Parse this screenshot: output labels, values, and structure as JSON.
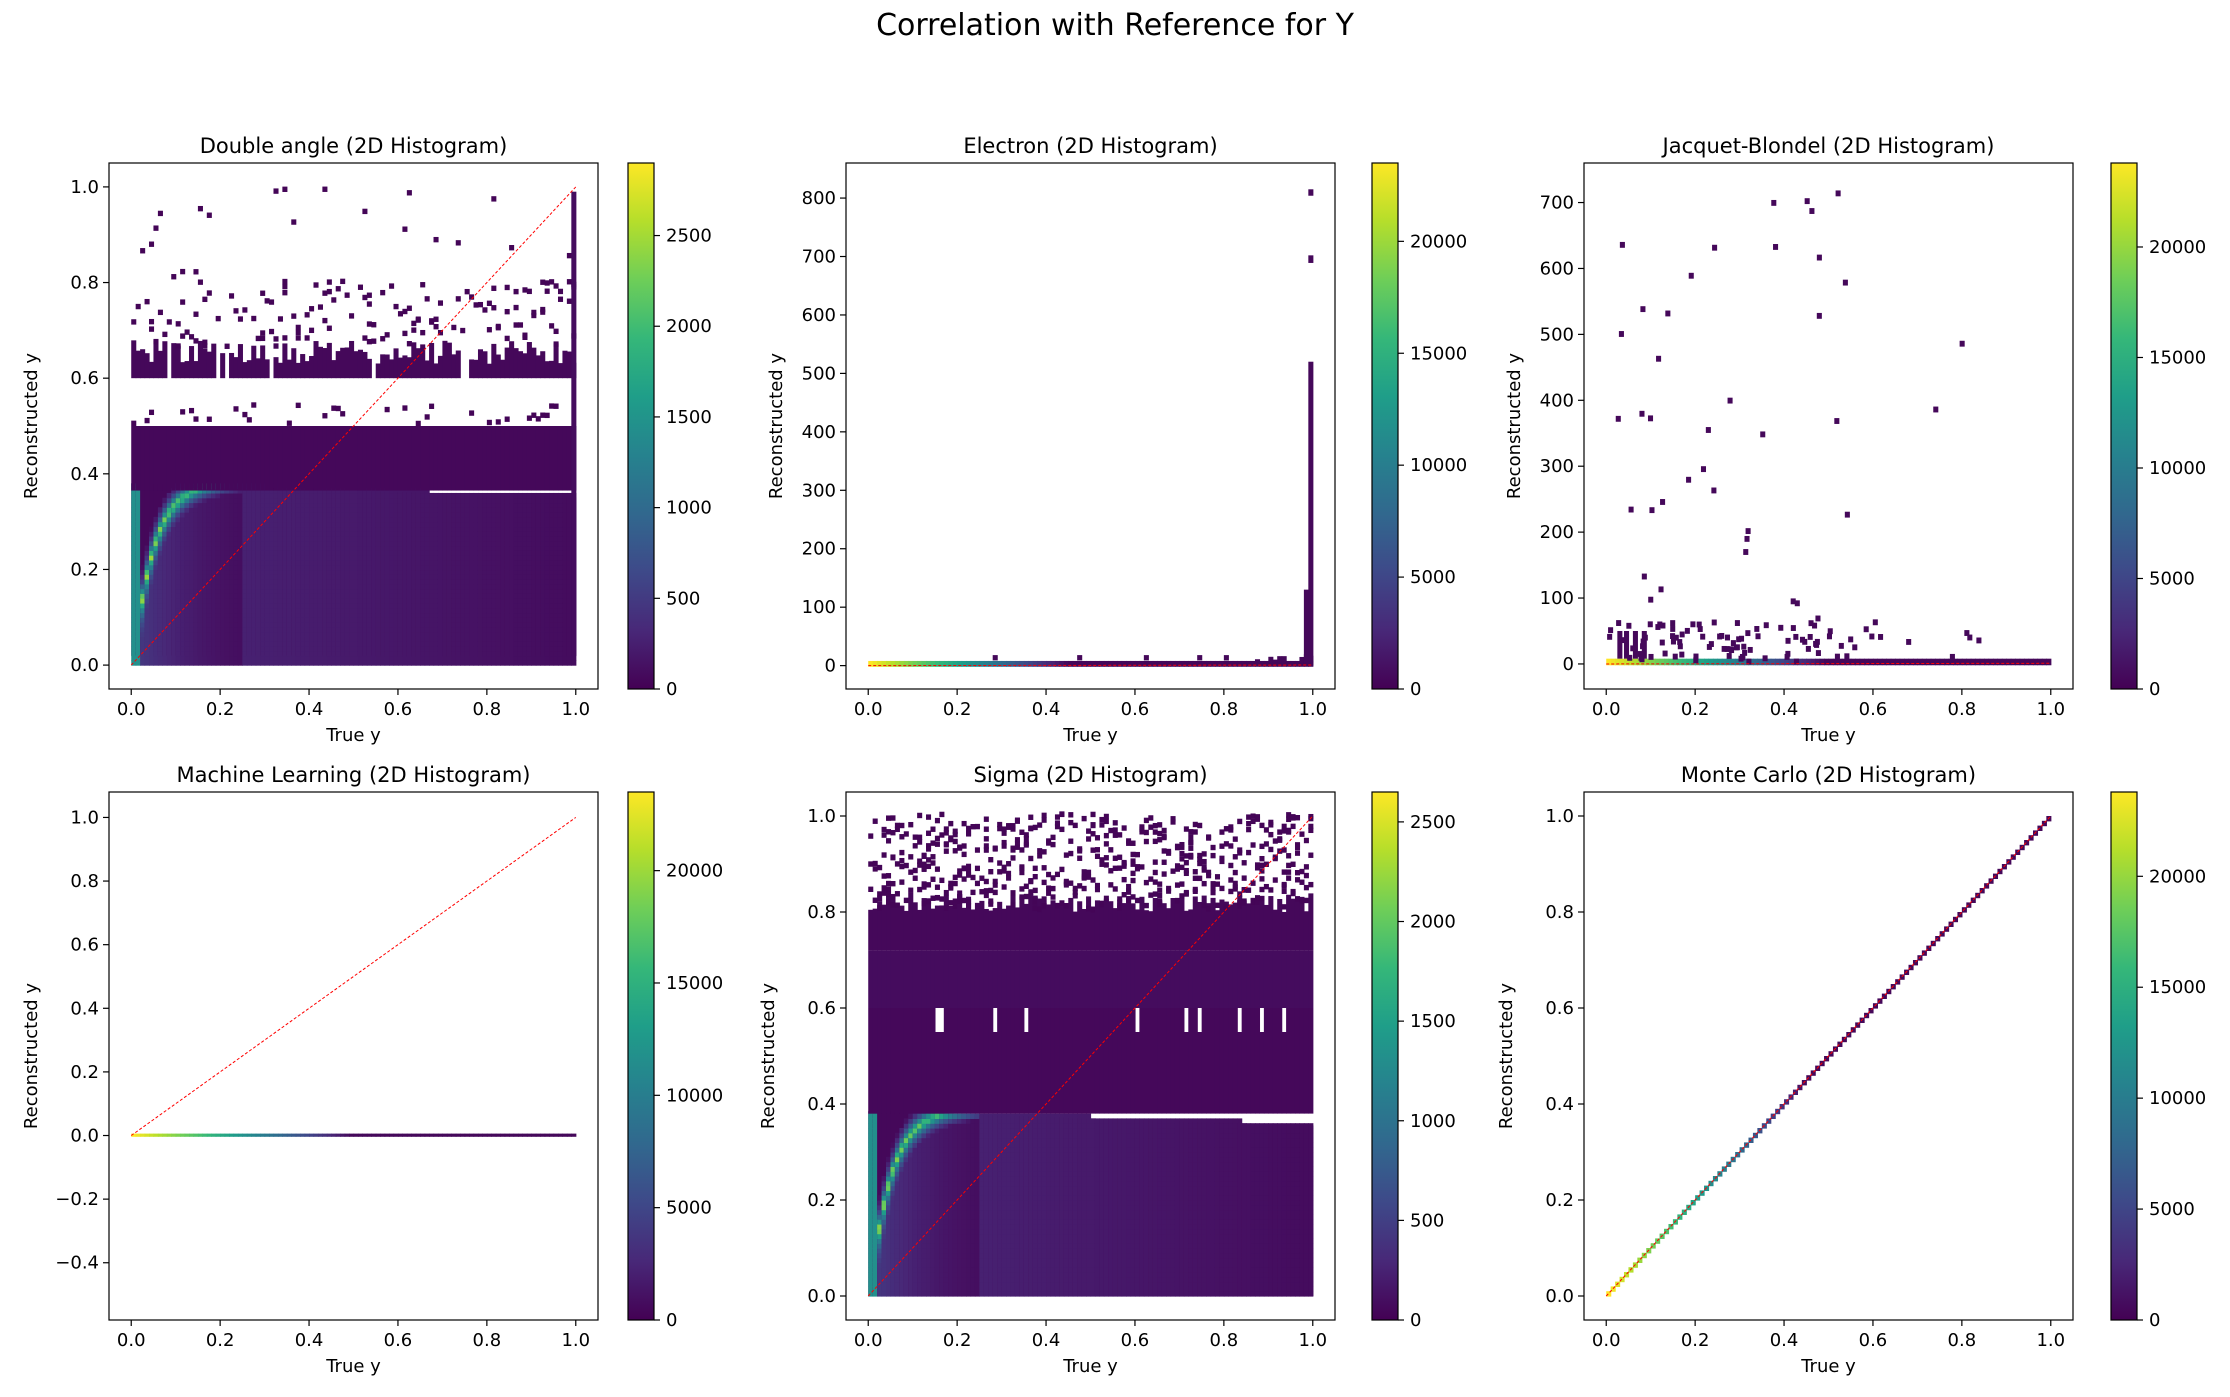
{
  "figure_title": "Correlation with Reference for Y",
  "colors": {
    "viridis": [
      "#440154",
      "#482878",
      "#3e4989",
      "#31688e",
      "#26828e",
      "#1f9e89",
      "#35b779",
      "#6ece58",
      "#b5de2b",
      "#fde725"
    ],
    "reference_line": "#ff0000",
    "axes": "#000000"
  },
  "chart_data": [
    {
      "type": "heatmap",
      "name": "double_angle",
      "title": "Double angle (2D Histogram)",
      "xlabel": "True y",
      "ylabel": "Reconstructed y",
      "xlim": [
        -0.05,
        1.05
      ],
      "ylim": [
        -0.05,
        1.05
      ],
      "xticks": [
        "0.0",
        "0.2",
        "0.4",
        "0.6",
        "0.8",
        "1.0"
      ],
      "yticks": [
        "0.0",
        "0.2",
        "0.4",
        "0.6",
        "0.8",
        "1.0"
      ],
      "colorbar": {
        "range": [
          0,
          2900
        ],
        "ticks": [
          "0",
          "500",
          "1000",
          "1500",
          "2000",
          "2500"
        ]
      },
      "reference_line": {
        "x": [
          0,
          1
        ],
        "y": [
          0,
          1
        ]
      },
      "pattern": "da"
    },
    {
      "type": "heatmap",
      "name": "electron",
      "title": "Electron (2D Histogram)",
      "xlabel": "True y",
      "ylabel": "Reconstructed y",
      "xlim": [
        -0.05,
        1.05
      ],
      "ylim": [
        -40,
        860
      ],
      "xticks": [
        "0.0",
        "0.2",
        "0.4",
        "0.6",
        "0.8",
        "1.0"
      ],
      "yticks": [
        "0",
        "100",
        "200",
        "300",
        "400",
        "500",
        "600",
        "700",
        "800"
      ],
      "colorbar": {
        "range": [
          0,
          23500
        ],
        "ticks": [
          "0",
          "5000",
          "10000",
          "15000",
          "20000"
        ]
      },
      "reference_line": {
        "x": [
          0,
          1
        ],
        "y": [
          0,
          1
        ]
      },
      "pattern": "electron"
    },
    {
      "type": "heatmap",
      "name": "jacquet_blondel",
      "title": "Jacquet-Blondel (2D Histogram)",
      "xlabel": "True y",
      "ylabel": "Reconstructed y",
      "xlim": [
        -0.05,
        1.05
      ],
      "ylim": [
        -38,
        760
      ],
      "xticks": [
        "0.0",
        "0.2",
        "0.4",
        "0.6",
        "0.8",
        "1.0"
      ],
      "yticks": [
        "0",
        "100",
        "200",
        "300",
        "400",
        "500",
        "600",
        "700"
      ],
      "colorbar": {
        "range": [
          0,
          23800
        ],
        "ticks": [
          "0",
          "5000",
          "10000",
          "15000",
          "20000"
        ]
      },
      "reference_line": {
        "x": [
          0,
          1
        ],
        "y": [
          0,
          1
        ]
      },
      "pattern": "jb"
    },
    {
      "type": "heatmap",
      "name": "machine_learning",
      "title": "Machine Learning (2D Histogram)",
      "xlabel": "True y",
      "ylabel": "Reconstructed y",
      "xlim": [
        -0.05,
        1.05
      ],
      "ylim": [
        -0.58,
        1.08
      ],
      "xticks": [
        "0.0",
        "0.2",
        "0.4",
        "0.6",
        "0.8",
        "1.0"
      ],
      "yticks": [
        "−0.4",
        "−0.2",
        "0.0",
        "0.2",
        "0.4",
        "0.6",
        "0.8",
        "1.0"
      ],
      "colorbar": {
        "range": [
          0,
          23500
        ],
        "ticks": [
          "0",
          "5000",
          "10000",
          "15000",
          "20000"
        ]
      },
      "reference_line": {
        "x": [
          0,
          1
        ],
        "y": [
          0,
          1
        ]
      },
      "pattern": "ml"
    },
    {
      "type": "heatmap",
      "name": "sigma",
      "title": "Sigma (2D Histogram)",
      "xlabel": "True y",
      "ylabel": "Reconstructed y",
      "xlim": [
        -0.05,
        1.05
      ],
      "ylim": [
        -0.05,
        1.05
      ],
      "xticks": [
        "0.0",
        "0.2",
        "0.4",
        "0.6",
        "0.8",
        "1.0"
      ],
      "yticks": [
        "0.0",
        "0.2",
        "0.4",
        "0.6",
        "0.8",
        "1.0"
      ],
      "colorbar": {
        "range": [
          0,
          2650
        ],
        "ticks": [
          "0",
          "500",
          "1000",
          "1500",
          "2000",
          "2500"
        ]
      },
      "reference_line": {
        "x": [
          0,
          1
        ],
        "y": [
          0,
          1
        ]
      },
      "pattern": "sigma"
    },
    {
      "type": "heatmap",
      "name": "monte_carlo",
      "title": "Monte Carlo (2D Histogram)",
      "xlabel": "True y",
      "ylabel": "Reconstructed y",
      "xlim": [
        -0.05,
        1.05
      ],
      "ylim": [
        -0.05,
        1.05
      ],
      "xticks": [
        "0.0",
        "0.2",
        "0.4",
        "0.6",
        "0.8",
        "1.0"
      ],
      "yticks": [
        "0.0",
        "0.2",
        "0.4",
        "0.6",
        "0.8",
        "1.0"
      ],
      "colorbar": {
        "range": [
          0,
          23800
        ],
        "ticks": [
          "0",
          "5000",
          "10000",
          "15000",
          "20000"
        ]
      },
      "reference_line": {
        "x": [
          0,
          1
        ],
        "y": [
          0,
          1
        ]
      },
      "pattern": "mc"
    }
  ]
}
